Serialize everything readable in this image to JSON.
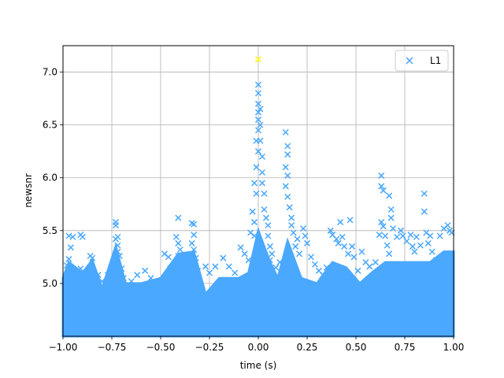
{
  "chart_data": {
    "type": "scatter",
    "title": "",
    "xlabel": "time (s)",
    "ylabel": "newsnr",
    "xlim": [
      -1.0,
      1.0
    ],
    "ylim": [
      4.5,
      7.25
    ],
    "grid": true,
    "legend_position": "top-right",
    "x_ticks": [
      -1.0,
      -0.75,
      -0.5,
      -0.25,
      0.0,
      0.25,
      0.5,
      0.75,
      1.0
    ],
    "x_tick_labels": [
      "−1.00",
      "−0.75",
      "−0.50",
      "−0.25",
      "0.00",
      "0.25",
      "0.50",
      "0.75",
      "1.00"
    ],
    "y_ticks": [
      5.0,
      5.5,
      6.0,
      6.5,
      7.0
    ],
    "y_tick_labels": [
      "5.0",
      "5.5",
      "6.0",
      "6.5",
      "7.0"
    ],
    "series": [
      {
        "name": "L1",
        "color": "#4aa8ff",
        "marker": "x",
        "points": [
          [
            -0.97,
            5.45
          ],
          [
            -0.95,
            5.44
          ],
          [
            -0.96,
            5.34
          ],
          [
            -0.97,
            5.23
          ],
          [
            -0.98,
            5.17
          ],
          [
            -0.91,
            5.46
          ],
          [
            -0.9,
            5.44
          ],
          [
            -0.91,
            5.14
          ],
          [
            -0.92,
            5.08
          ],
          [
            -0.86,
            5.26
          ],
          [
            -0.85,
            5.24
          ],
          [
            -0.85,
            5.12
          ],
          [
            -0.82,
            5.08
          ],
          [
            -0.8,
            5.02
          ],
          [
            -0.77,
            5.08
          ],
          [
            -0.73,
            5.58
          ],
          [
            -0.73,
            5.55
          ],
          [
            -0.72,
            5.44
          ],
          [
            -0.73,
            5.42
          ],
          [
            -0.72,
            5.36
          ],
          [
            -0.72,
            5.3
          ],
          [
            -0.71,
            5.26
          ],
          [
            -0.73,
            5.22
          ],
          [
            -0.7,
            5.14
          ],
          [
            -0.69,
            5.05
          ],
          [
            -0.65,
            5.02
          ],
          [
            -0.62,
            5.08
          ],
          [
            -0.58,
            5.12
          ],
          [
            -0.55,
            5.05
          ],
          [
            -0.48,
            5.28
          ],
          [
            -0.46,
            5.25
          ],
          [
            -0.45,
            5.14
          ],
          [
            -0.44,
            5.05
          ],
          [
            -0.41,
            5.62
          ],
          [
            -0.42,
            5.44
          ],
          [
            -0.41,
            5.38
          ],
          [
            -0.4,
            5.32
          ],
          [
            -0.41,
            5.26
          ],
          [
            -0.4,
            5.22
          ],
          [
            -0.42,
            5.16
          ],
          [
            -0.39,
            5.12
          ],
          [
            -0.34,
            5.57
          ],
          [
            -0.33,
            5.56
          ],
          [
            -0.33,
            5.46
          ],
          [
            -0.34,
            5.38
          ],
          [
            -0.33,
            5.32
          ],
          [
            -0.32,
            5.24
          ],
          [
            -0.34,
            5.18
          ],
          [
            -0.31,
            5.12
          ],
          [
            -0.27,
            5.16
          ],
          [
            -0.25,
            5.1
          ],
          [
            -0.22,
            5.16
          ],
          [
            -0.18,
            5.24
          ],
          [
            -0.15,
            5.16
          ],
          [
            -0.12,
            5.1
          ],
          [
            -0.09,
            5.34
          ],
          [
            -0.07,
            5.28
          ],
          [
            -0.05,
            5.22
          ],
          [
            -0.03,
            5.12
          ],
          [
            -0.02,
            5.45
          ],
          [
            -0.02,
            5.58
          ],
          [
            -0.04,
            5.48
          ],
          [
            -0.03,
            5.68
          ],
          [
            -0.01,
            5.85
          ],
          [
            -0.02,
            5.95
          ],
          [
            -0.01,
            6.1
          ],
          [
            0.0,
            6.25
          ],
          [
            -0.01,
            6.35
          ],
          [
            0.0,
            6.45
          ],
          [
            0.0,
            6.55
          ],
          [
            0.0,
            6.62
          ],
          [
            0.0,
            6.7
          ],
          [
            0.0,
            6.8
          ],
          [
            0.0,
            6.88
          ],
          [
            0.01,
            6.65
          ],
          [
            0.01,
            6.5
          ],
          [
            0.01,
            6.35
          ],
          [
            0.02,
            6.2
          ],
          [
            0.02,
            6.05
          ],
          [
            0.02,
            5.95
          ],
          [
            0.03,
            5.85
          ],
          [
            0.03,
            5.7
          ],
          [
            0.04,
            5.62
          ],
          [
            0.05,
            5.55
          ],
          [
            0.05,
            5.45
          ],
          [
            0.06,
            5.35
          ],
          [
            0.07,
            5.28
          ],
          [
            0.06,
            5.22
          ],
          [
            0.07,
            5.12
          ],
          [
            0.09,
            5.15
          ],
          [
            0.11,
            5.2
          ],
          [
            0.14,
            6.43
          ],
          [
            0.15,
            6.3
          ],
          [
            0.15,
            6.22
          ],
          [
            0.14,
            6.1
          ],
          [
            0.15,
            6.02
          ],
          [
            0.14,
            5.92
          ],
          [
            0.15,
            5.82
          ],
          [
            0.16,
            5.72
          ],
          [
            0.17,
            5.62
          ],
          [
            0.17,
            5.55
          ],
          [
            0.18,
            5.48
          ],
          [
            0.2,
            5.42
          ],
          [
            0.19,
            5.35
          ],
          [
            0.21,
            5.28
          ],
          [
            0.23,
            5.52
          ],
          [
            0.24,
            5.45
          ],
          [
            0.25,
            5.38
          ],
          [
            0.27,
            5.25
          ],
          [
            0.29,
            5.18
          ],
          [
            0.31,
            5.12
          ],
          [
            0.33,
            5.08
          ],
          [
            0.35,
            5.15
          ],
          [
            0.37,
            5.5
          ],
          [
            0.38,
            5.46
          ],
          [
            0.4,
            5.42
          ],
          [
            0.41,
            5.38
          ],
          [
            0.42,
            5.58
          ],
          [
            0.43,
            5.44
          ],
          [
            0.44,
            5.35
          ],
          [
            0.46,
            5.28
          ],
          [
            0.47,
            5.6
          ],
          [
            0.48,
            5.35
          ],
          [
            0.49,
            5.25
          ],
          [
            0.51,
            5.12
          ],
          [
            0.53,
            5.3
          ],
          [
            0.55,
            5.2
          ],
          [
            0.57,
            5.16
          ],
          [
            0.6,
            5.2
          ],
          [
            0.62,
            5.46
          ],
          [
            0.63,
            6.02
          ],
          [
            0.63,
            5.92
          ],
          [
            0.64,
            5.88
          ],
          [
            0.63,
            5.58
          ],
          [
            0.64,
            5.54
          ],
          [
            0.65,
            5.45
          ],
          [
            0.66,
            5.36
          ],
          [
            0.67,
            5.28
          ],
          [
            0.67,
            5.83
          ],
          [
            0.68,
            5.7
          ],
          [
            0.68,
            5.62
          ],
          [
            0.69,
            5.52
          ],
          [
            0.71,
            5.44
          ],
          [
            0.73,
            5.5
          ],
          [
            0.74,
            5.45
          ],
          [
            0.76,
            5.4
          ],
          [
            0.78,
            5.46
          ],
          [
            0.79,
            5.35
          ],
          [
            0.8,
            5.3
          ],
          [
            0.81,
            5.44
          ],
          [
            0.83,
            5.36
          ],
          [
            0.85,
            5.85
          ],
          [
            0.85,
            5.68
          ],
          [
            0.86,
            5.48
          ],
          [
            0.88,
            5.45
          ],
          [
            0.87,
            5.38
          ],
          [
            0.89,
            5.3
          ],
          [
            0.91,
            5.22
          ],
          [
            0.93,
            5.45
          ],
          [
            0.95,
            5.52
          ],
          [
            0.97,
            5.55
          ],
          [
            0.98,
            5.5
          ],
          [
            0.99,
            5.48
          ]
        ]
      }
    ],
    "highlight_point": {
      "x": 0.0,
      "y": 7.12,
      "color": "#ffff33"
    },
    "dense_band": {
      "note": "",
      "clusters": [
        [
          -1.0,
          5.05
        ],
        [
          -0.97,
          5.2
        ],
        [
          -0.9,
          5.1
        ],
        [
          -0.85,
          5.22
        ],
        [
          -0.8,
          4.95
        ],
        [
          -0.73,
          5.35
        ],
        [
          -0.68,
          5.0
        ],
        [
          -0.6,
          5.0
        ],
        [
          -0.5,
          5.05
        ],
        [
          -0.41,
          5.28
        ],
        [
          -0.33,
          5.3
        ],
        [
          -0.27,
          4.9
        ],
        [
          -0.2,
          5.05
        ],
        [
          -0.1,
          5.05
        ],
        [
          -0.05,
          5.1
        ],
        [
          0.0,
          5.5
        ],
        [
          0.06,
          5.2
        ],
        [
          0.1,
          5.05
        ],
        [
          0.15,
          5.4
        ],
        [
          0.22,
          5.05
        ],
        [
          0.3,
          5.0
        ],
        [
          0.38,
          5.2
        ],
        [
          0.45,
          5.15
        ],
        [
          0.52,
          5.0
        ],
        [
          0.58,
          5.1
        ],
        [
          0.65,
          5.2
        ],
        [
          0.72,
          5.2
        ],
        [
          0.8,
          5.2
        ],
        [
          0.88,
          5.2
        ],
        [
          0.95,
          5.3
        ],
        [
          1.0,
          5.3
        ]
      ]
    }
  }
}
